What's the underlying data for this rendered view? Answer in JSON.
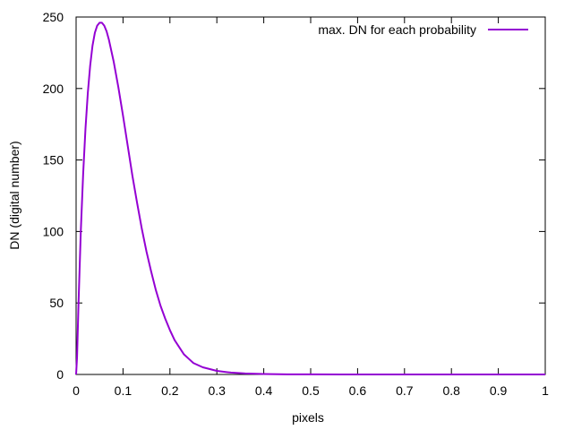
{
  "chart_data": {
    "type": "line",
    "title": "",
    "xlabel": "pixels",
    "ylabel": "DN (digital number)",
    "xlim": [
      0,
      1
    ],
    "ylim": [
      0,
      250
    ],
    "x_ticks": [
      0,
      0.1,
      0.2,
      0.3,
      0.4,
      0.5,
      0.6,
      0.7,
      0.8,
      0.9,
      1
    ],
    "x_tick_labels": [
      "0",
      "0.1",
      "0.2",
      "0.3",
      "0.4",
      "0.5",
      "0.6",
      "0.7",
      "0.8",
      "0.9",
      "1"
    ],
    "y_ticks": [
      0,
      50,
      100,
      150,
      200,
      250
    ],
    "y_tick_labels": [
      "0",
      "50",
      "100",
      "150",
      "200",
      "250"
    ],
    "grid": false,
    "legend_position": "top-right",
    "series": [
      {
        "name": "max. DN for each probability",
        "color": "#9400d3",
        "x": [
          0,
          0.002,
          0.005,
          0.01,
          0.015,
          0.02,
          0.025,
          0.03,
          0.035,
          0.04,
          0.045,
          0.05,
          0.055,
          0.06,
          0.065,
          0.07,
          0.08,
          0.09,
          0.1,
          0.11,
          0.12,
          0.13,
          0.14,
          0.15,
          0.16,
          0.17,
          0.18,
          0.19,
          0.2,
          0.21,
          0.22,
          0.23,
          0.24,
          0.25,
          0.27,
          0.3,
          0.33,
          0.36,
          0.4,
          0.45,
          0.5,
          0.6,
          0.7,
          0.8,
          0.9,
          1
        ],
        "y": [
          0,
          12,
          48,
          100,
          140,
          172,
          197,
          216,
          230,
          239,
          244,
          246,
          246,
          244,
          240,
          234,
          219,
          201,
          181,
          160,
          139,
          120,
          102,
          86,
          72,
          59,
          48,
          39,
          31,
          24,
          19,
          14,
          11,
          8,
          5,
          2.5,
          1.3,
          0.7,
          0.3,
          0.1,
          0.05,
          0,
          0,
          0,
          0,
          0
        ]
      }
    ]
  }
}
